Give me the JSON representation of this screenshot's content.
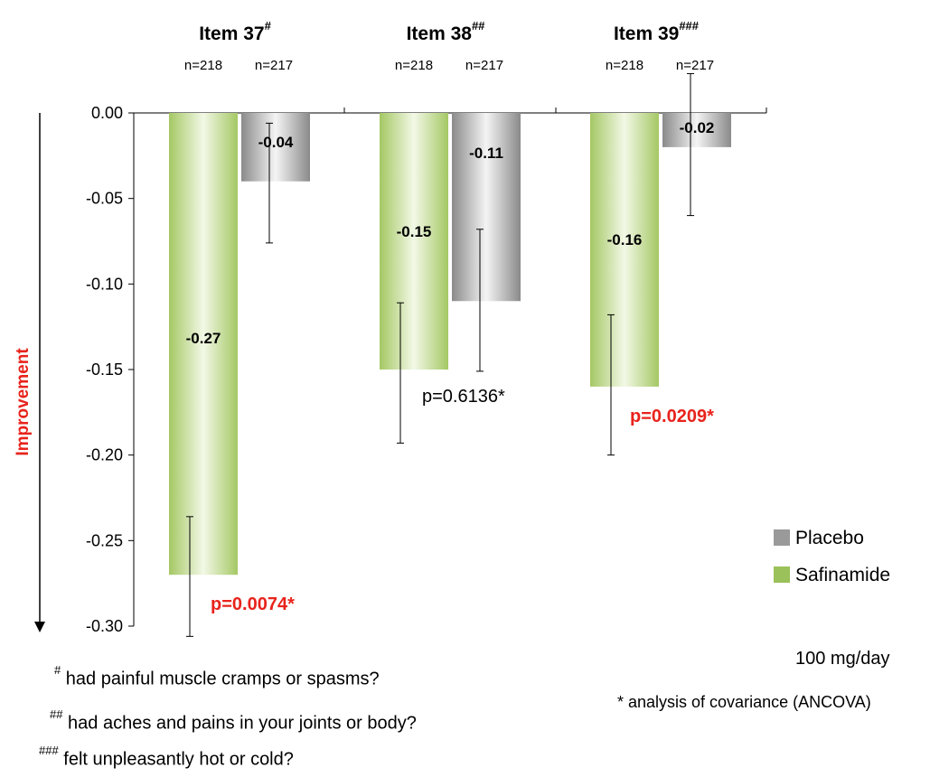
{
  "chart_data": {
    "type": "bar",
    "ylabel": "Improvement",
    "ylim": [
      -0.3,
      0.0
    ],
    "yticks": [
      "0.00",
      "-0.05",
      "-0.10",
      "-0.15",
      "-0.20",
      "-0.25",
      "-0.30"
    ],
    "ytick_values": [
      0.0,
      -0.05,
      -0.1,
      -0.15,
      -0.2,
      -0.25,
      -0.3
    ],
    "grid": false,
    "legend_position": "right",
    "categories": [
      {
        "label": "Item 37",
        "sup": "#",
        "n_left": "n=218",
        "n_right": "n=217"
      },
      {
        "label": "Item 38",
        "sup": "##",
        "n_left": "n=218",
        "n_right": "n=217"
      },
      {
        "label": "Item 39",
        "sup": "###",
        "n_left": "n=218",
        "n_right": "n=217"
      }
    ],
    "series": [
      {
        "name": "Safinamide",
        "color": "#9bc15a",
        "values": [
          -0.27,
          -0.15,
          -0.16
        ],
        "labels": [
          "-0.27",
          "-0.15",
          "-0.16"
        ],
        "error_bars": [
          [
            -0.306,
            -0.236
          ],
          [
            -0.193,
            -0.111
          ],
          [
            -0.2,
            -0.118
          ]
        ]
      },
      {
        "name": "Placebo",
        "color": "#9a9a9a",
        "values": [
          -0.04,
          -0.11,
          -0.02
        ],
        "labels": [
          "-0.04",
          "-0.11",
          "-0.02"
        ],
        "error_bars": [
          [
            -0.076,
            -0.006
          ],
          [
            -0.151,
            -0.068
          ],
          [
            -0.06,
            0.023
          ]
        ]
      }
    ],
    "pvalues": [
      {
        "text": "p=0.0074*",
        "significant": true
      },
      {
        "text": "p=0.6136*",
        "significant": false
      },
      {
        "text": "p=0.0209*",
        "significant": true
      }
    ],
    "legend": [
      "Placebo",
      "Safinamide"
    ],
    "dose": "100 mg/day",
    "method_note": "* analysis of covariance (ANCOVA)"
  },
  "footnotes": [
    {
      "mark": "#",
      "text": "had painful muscle cramps or spasms?"
    },
    {
      "mark": "##",
      "text": "had aches and pains in your joints or body?"
    },
    {
      "mark": "###",
      "text": "felt unpleasantly hot or cold?"
    }
  ]
}
